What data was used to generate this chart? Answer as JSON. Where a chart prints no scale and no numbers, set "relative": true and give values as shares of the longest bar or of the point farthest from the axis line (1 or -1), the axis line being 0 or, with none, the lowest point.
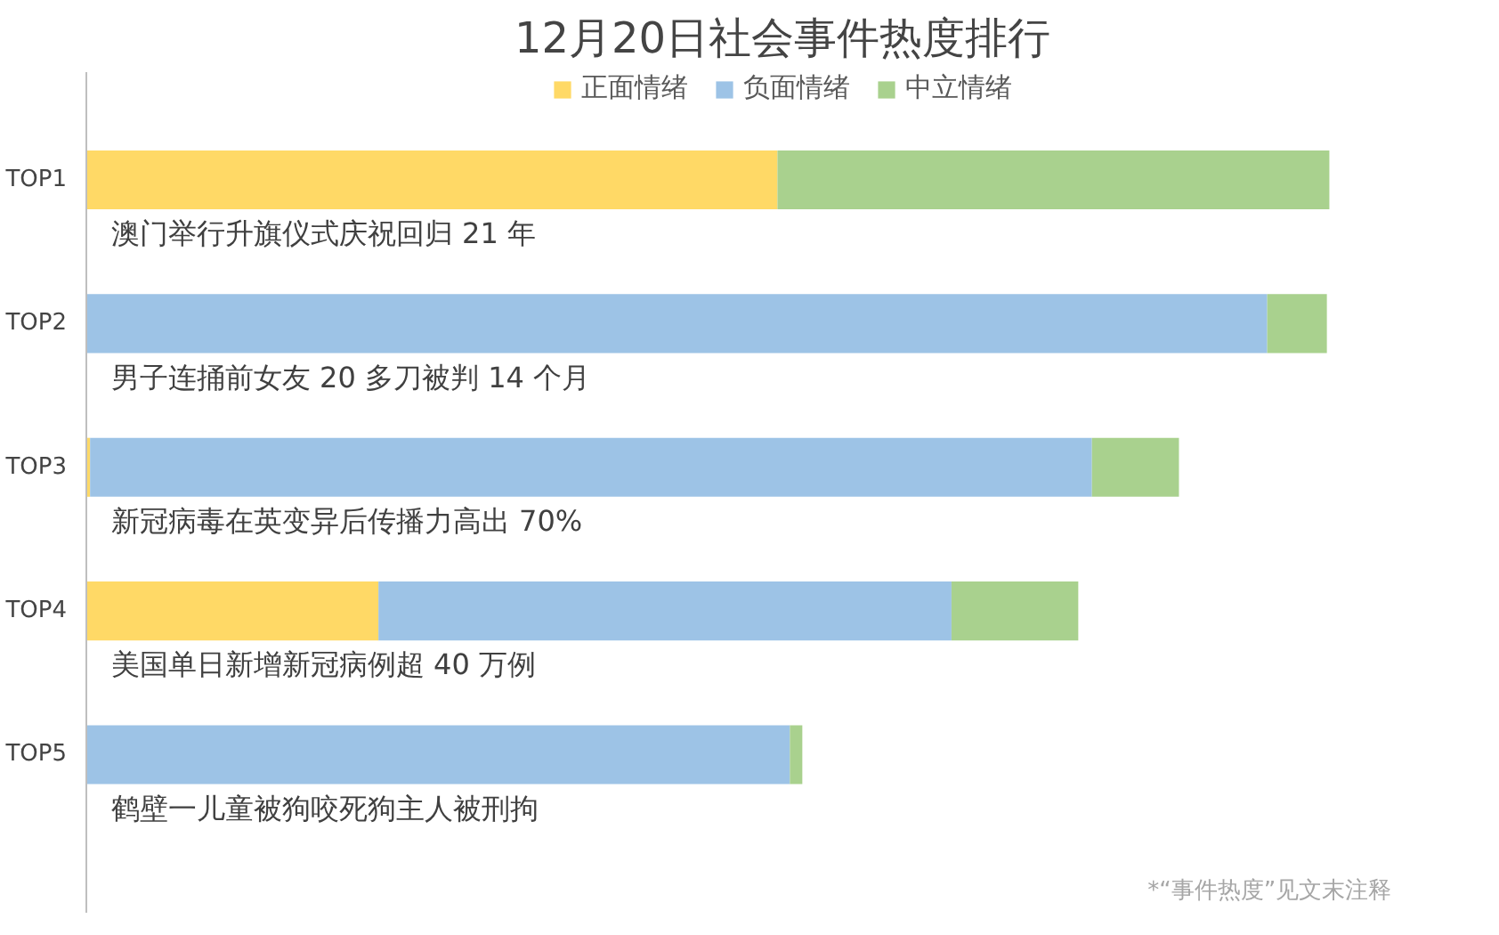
{
  "chart_data": {
    "type": "bar",
    "orientation": "horizontal",
    "stacked": true,
    "relative": true,
    "title": "12月20日社会事件热度排行",
    "categories": [
      "TOP1",
      "TOP2",
      "TOP3",
      "TOP4",
      "TOP5"
    ],
    "series": [
      {
        "name": "正面情绪",
        "color": "#ffd966",
        "values": [
          0.556,
          0,
          0.003,
          0.235,
          0
        ]
      },
      {
        "name": "负面情绪",
        "color": "#9dc3e6",
        "values": [
          0,
          0.95,
          0.806,
          0.461,
          0.566
        ]
      },
      {
        "name": "中立情绪",
        "color": "#a9d18e",
        "values": [
          0.444,
          0.048,
          0.07,
          0.102,
          0.01
        ]
      }
    ],
    "legend": "top",
    "grid": false,
    "annotations": [
      "澳门举行升旗仪式庆祝回归 21 年",
      "男子连捅前女友 20 多刀被判 14 个月",
      "新冠病毒在英变异后传播力高出 70%",
      "美国单日新增新冠病例超 40 万例",
      "鹤壁一儿童被狗咬死狗主人被刑拘",
      "*“事件热度”见文末注释"
    ]
  }
}
